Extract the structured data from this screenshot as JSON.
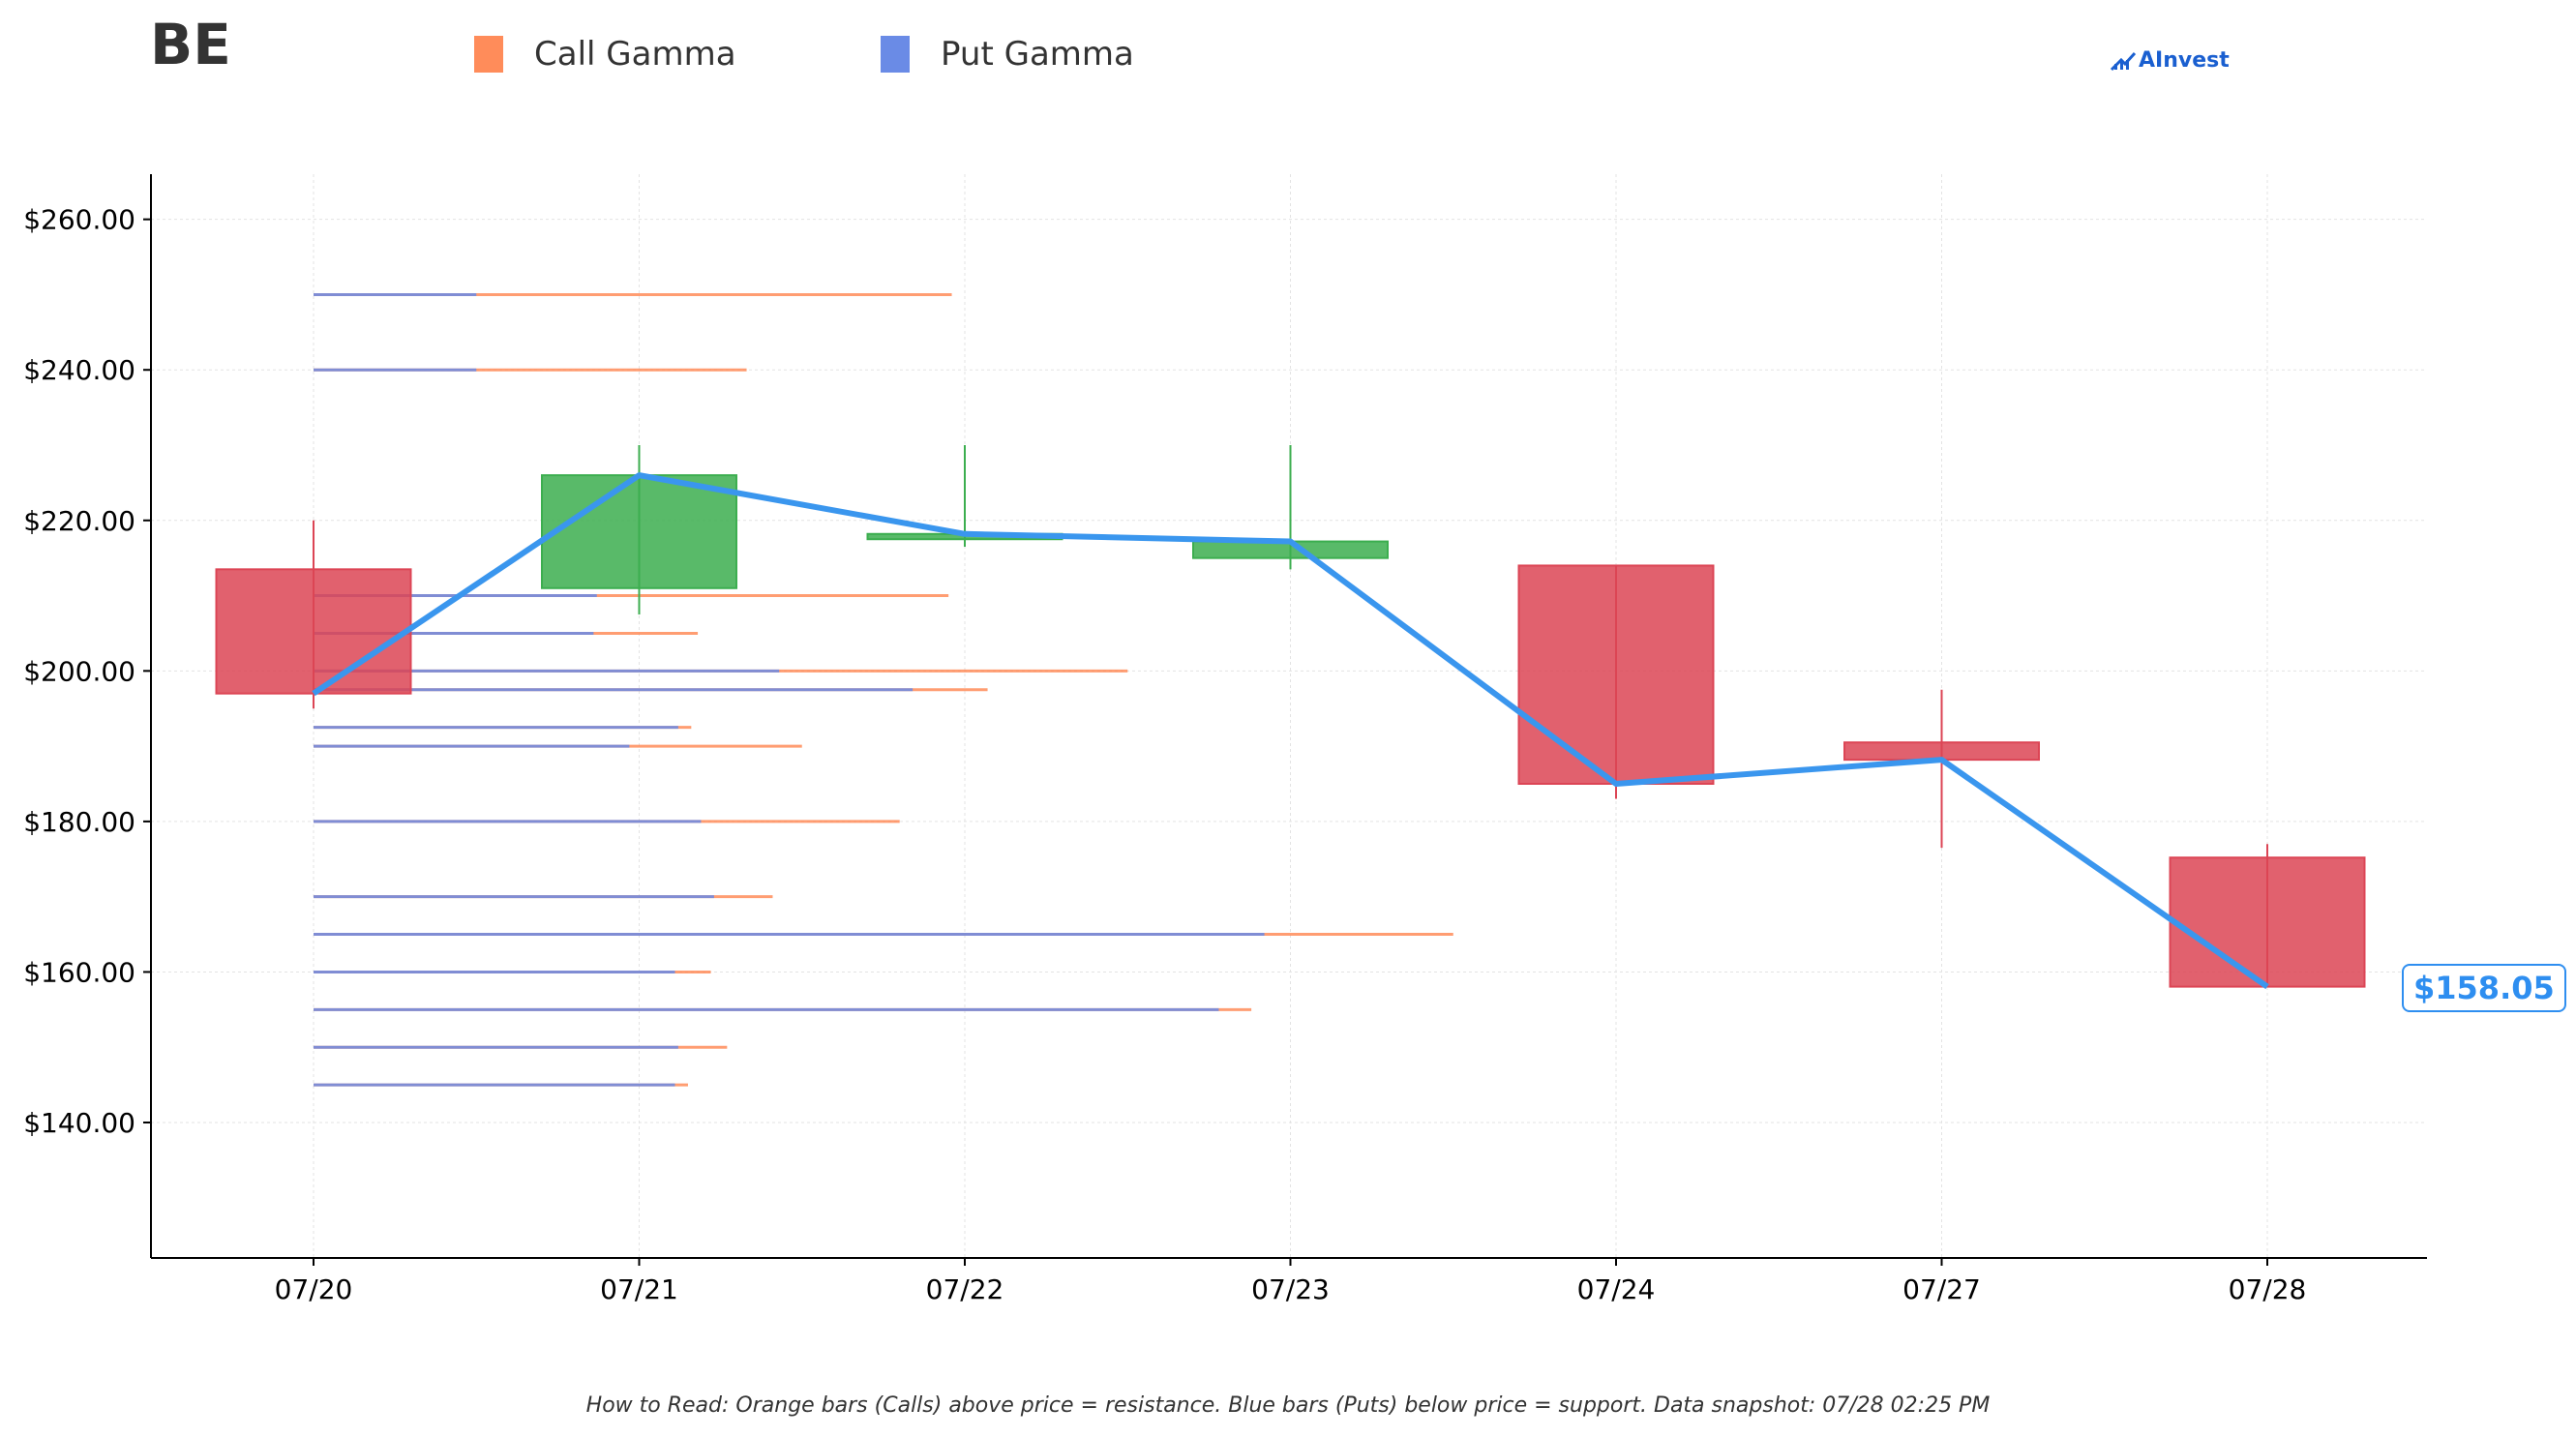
{
  "header": {
    "ticker": "BE",
    "legend": [
      {
        "label": "Call Gamma",
        "color": "#ff8c5a"
      },
      {
        "label": "Put Gamma",
        "color": "#6a8be6"
      }
    ],
    "brand": "AInvest"
  },
  "footer_note": "How to Read: Orange bars (Calls) above price = resistance. Blue bars (Puts) below price = support. Data snapshot: 07/28 02:25 PM",
  "price_label": "$158.05",
  "colors": {
    "up": "#3cae4f",
    "down": "#dc4555",
    "price_line": "#3a96ee",
    "call": "#ff8c5a",
    "put": "#6a8be6",
    "brand": "#1a5fd0"
  },
  "chart_data": {
    "type": "candlestick",
    "categories": [
      "07/20",
      "07/21",
      "07/22",
      "07/23",
      "07/24",
      "07/27",
      "07/28"
    ],
    "ylim": [
      122,
      266
    ],
    "yticks": [
      140,
      160,
      180,
      200,
      220,
      240,
      260
    ],
    "ytick_labels": [
      "$140.00",
      "$160.00",
      "$180.00",
      "$200.00",
      "$220.00",
      "$240.00",
      "$260.00"
    ],
    "grid": true,
    "candles": [
      {
        "date": "07/20",
        "open": 213.5,
        "high": 220.0,
        "low": 195.0,
        "close": 197.0
      },
      {
        "date": "07/21",
        "open": 211.0,
        "high": 230.0,
        "low": 207.5,
        "close": 226.0
      },
      {
        "date": "07/22",
        "open": 217.5,
        "high": 230.0,
        "low": 216.5,
        "close": 218.2
      },
      {
        "date": "07/23",
        "open": 215.0,
        "high": 230.0,
        "low": 213.5,
        "close": 217.2
      },
      {
        "date": "07/24",
        "open": 214.0,
        "high": 214.0,
        "low": 183.0,
        "close": 185.0
      },
      {
        "date": "07/27",
        "open": 190.5,
        "high": 197.5,
        "low": 176.5,
        "close": 188.2
      },
      {
        "date": "07/28",
        "open": 175.2,
        "high": 177.0,
        "low": 158.0,
        "close": 158.05
      }
    ],
    "price_line": [
      197.0,
      226.0,
      218.2,
      217.2,
      185.0,
      188.2,
      158.05
    ],
    "gamma_levels": [
      {
        "strike": 250,
        "put": 0.5,
        "call": 1.96
      },
      {
        "strike": 240,
        "put": 0.5,
        "call": 1.33
      },
      {
        "strike": 210,
        "put": 0.87,
        "call": 1.95
      },
      {
        "strike": 205,
        "put": 0.86,
        "call": 1.18
      },
      {
        "strike": 200,
        "put": 1.43,
        "call": 2.5
      },
      {
        "strike": 197.5,
        "put": 1.84,
        "call": 2.07
      },
      {
        "strike": 192.5,
        "put": 1.12,
        "call": 1.16
      },
      {
        "strike": 190,
        "put": 0.97,
        "call": 1.5
      },
      {
        "strike": 180,
        "put": 1.19,
        "call": 1.8
      },
      {
        "strike": 170,
        "put": 1.23,
        "call": 1.41
      },
      {
        "strike": 165,
        "put": 2.92,
        "call": 3.5
      },
      {
        "strike": 160,
        "put": 1.11,
        "call": 1.22
      },
      {
        "strike": 155,
        "put": 2.78,
        "call": 2.88
      },
      {
        "strike": 150,
        "put": 1.12,
        "call": 1.27
      },
      {
        "strike": 145,
        "put": 1.11,
        "call": 1.15
      }
    ]
  }
}
